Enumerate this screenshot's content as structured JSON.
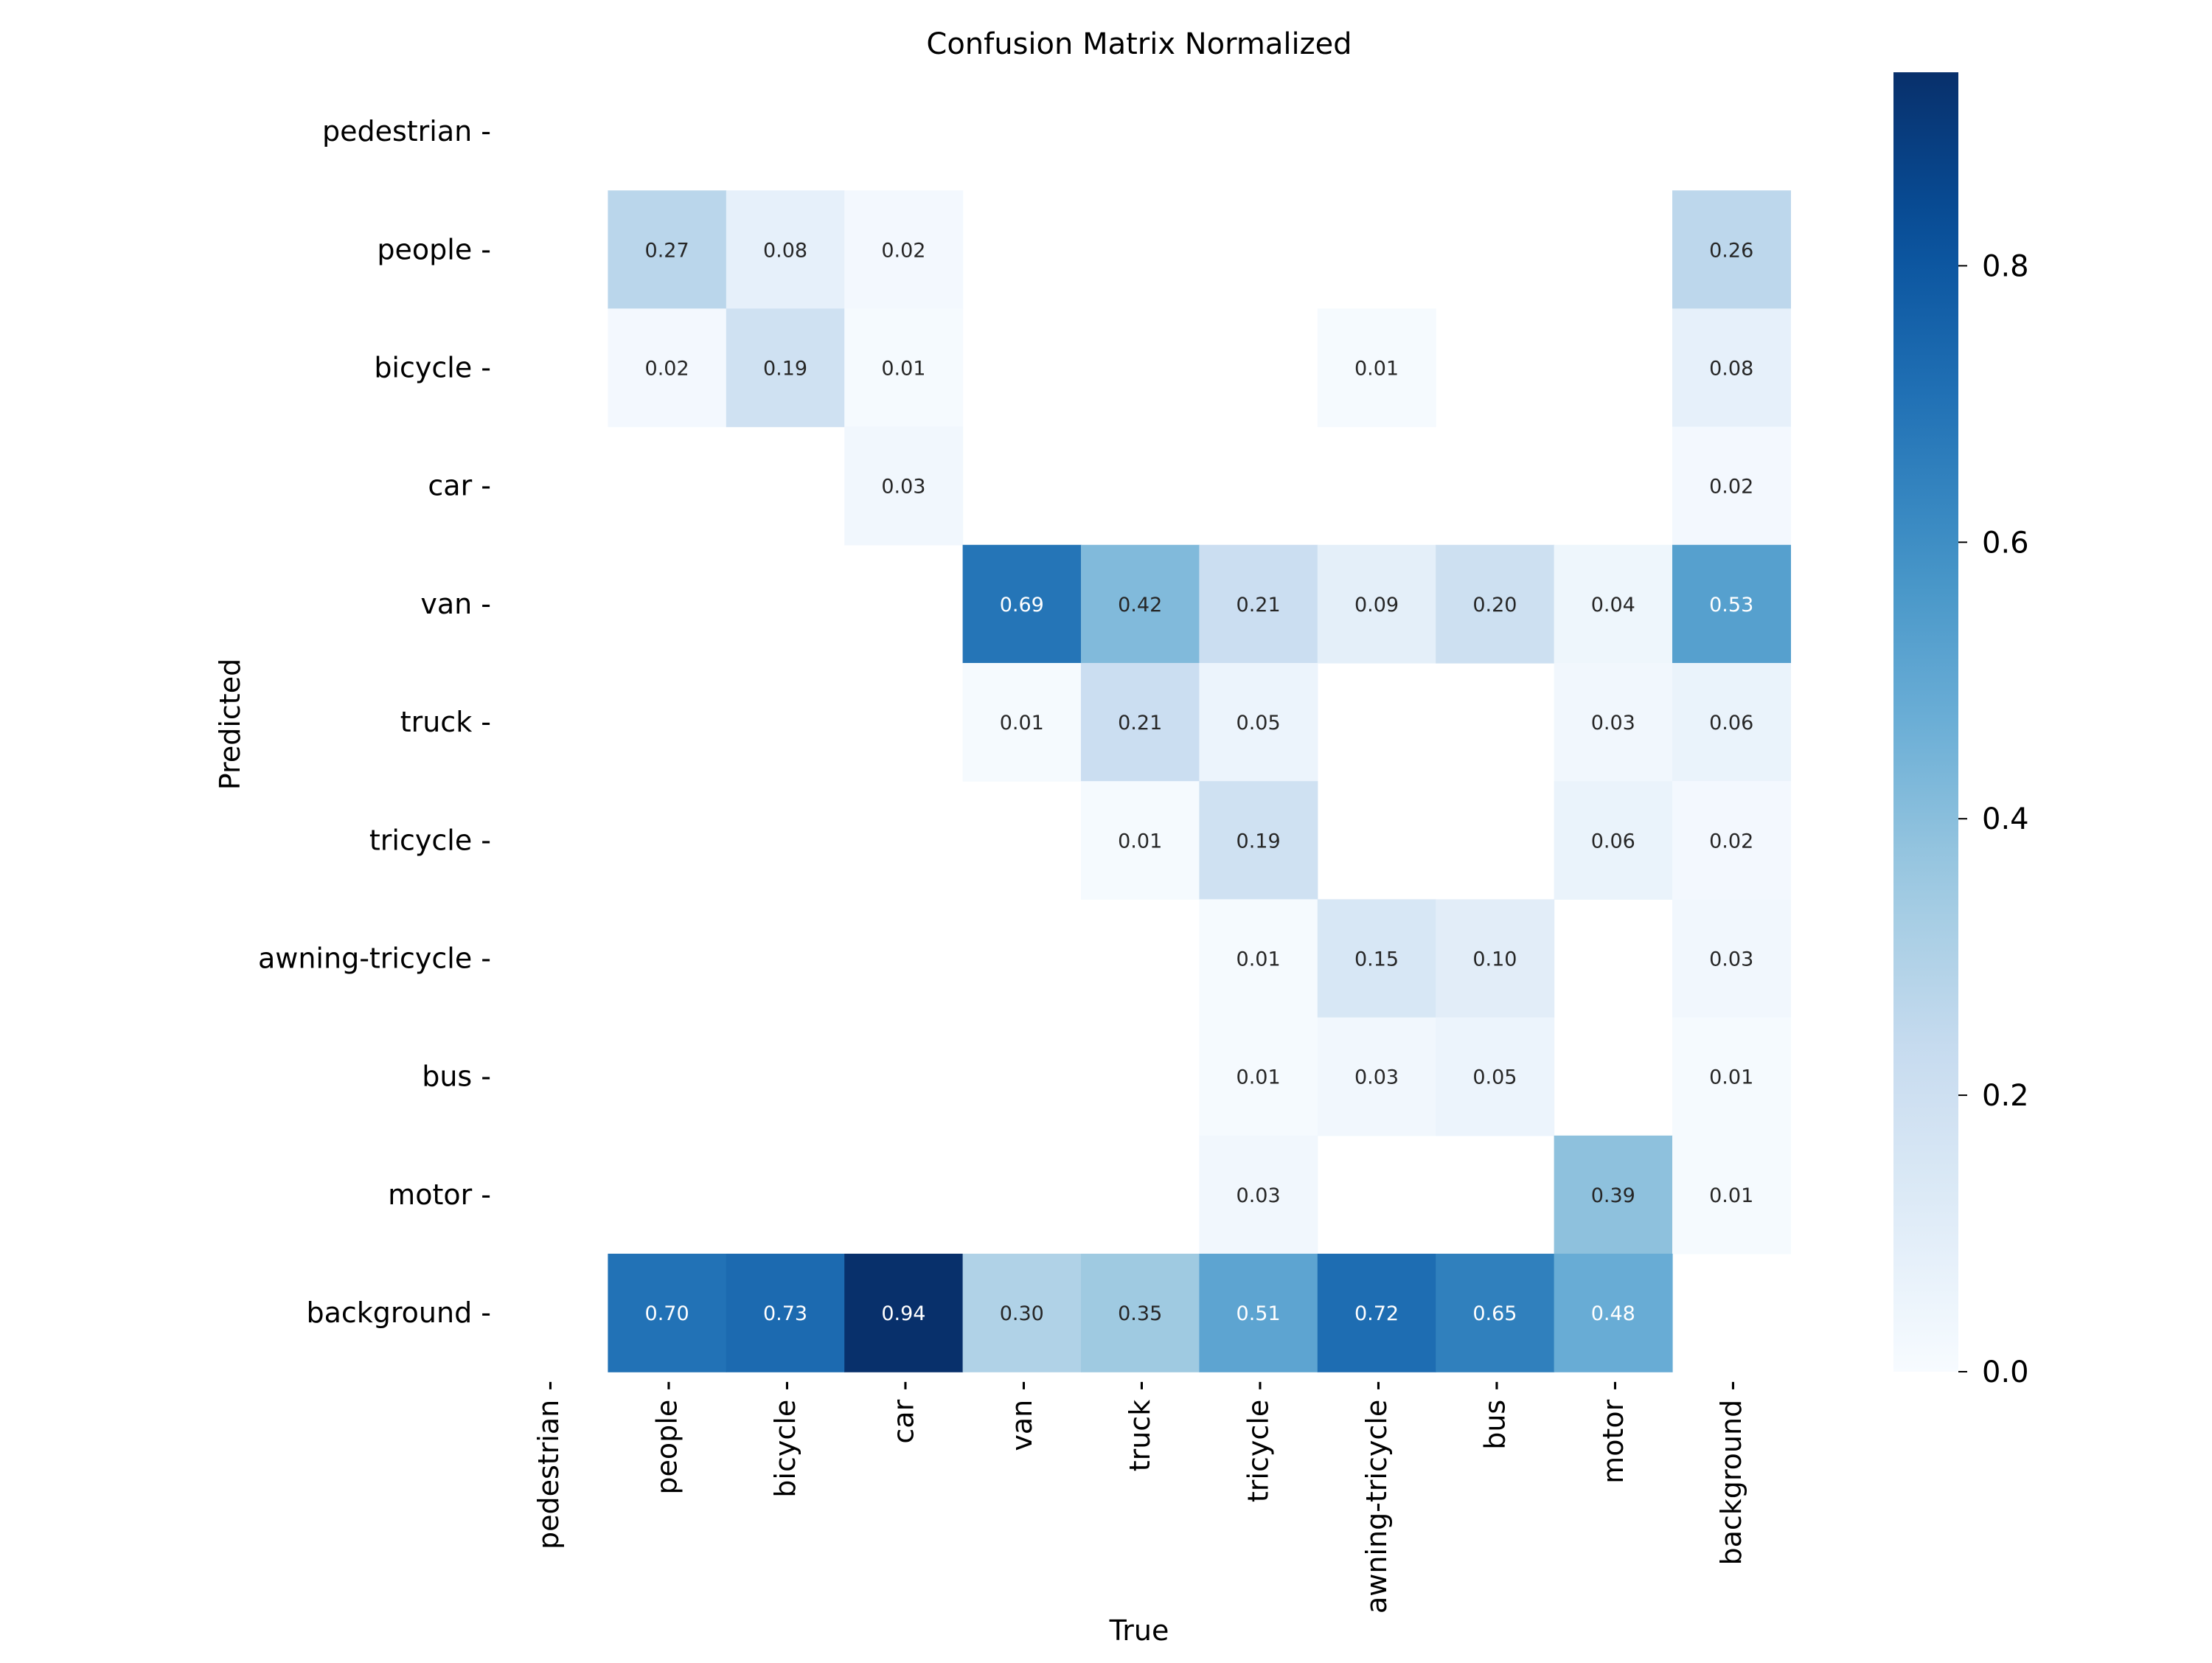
{
  "chart_data": {
    "type": "heatmap",
    "title": "Confusion Matrix Normalized",
    "xlabel": "True",
    "ylabel": "Predicted",
    "x_categories": [
      "pedestrian",
      "people",
      "bicycle",
      "car",
      "van",
      "truck",
      "tricycle",
      "awning-tricycle",
      "bus",
      "motor",
      "background"
    ],
    "y_categories": [
      "pedestrian",
      "people",
      "bicycle",
      "car",
      "van",
      "truck",
      "tricycle",
      "awning-tricycle",
      "bus",
      "motor",
      "background"
    ],
    "values": [
      [
        null,
        null,
        null,
        null,
        null,
        null,
        null,
        null,
        null,
        null,
        null
      ],
      [
        null,
        0.27,
        0.08,
        0.02,
        null,
        null,
        null,
        null,
        null,
        null,
        0.26
      ],
      [
        null,
        0.02,
        0.19,
        0.01,
        null,
        null,
        null,
        0.01,
        null,
        null,
        0.08
      ],
      [
        null,
        null,
        null,
        0.03,
        null,
        null,
        null,
        null,
        null,
        null,
        0.02
      ],
      [
        null,
        null,
        null,
        null,
        0.69,
        0.42,
        0.21,
        0.09,
        0.2,
        0.04,
        0.53
      ],
      [
        null,
        null,
        null,
        null,
        0.01,
        0.21,
        0.05,
        null,
        null,
        0.03,
        0.06
      ],
      [
        null,
        null,
        null,
        null,
        null,
        0.01,
        0.19,
        null,
        null,
        0.06,
        0.02
      ],
      [
        null,
        null,
        null,
        null,
        null,
        null,
        0.01,
        0.15,
        0.1,
        null,
        0.03
      ],
      [
        null,
        null,
        null,
        null,
        null,
        null,
        0.01,
        0.03,
        0.05,
        null,
        0.01
      ],
      [
        null,
        null,
        null,
        null,
        null,
        null,
        0.03,
        null,
        null,
        0.39,
        0.01
      ],
      [
        null,
        0.7,
        0.73,
        0.94,
        0.3,
        0.35,
        0.51,
        0.72,
        0.65,
        0.48,
        null
      ]
    ],
    "colormap": "Blues",
    "colorbar": {
      "range": [
        0,
        0.94
      ],
      "ticks": [
        0.0,
        0.2,
        0.4,
        0.6,
        0.8
      ],
      "tick_labels": [
        "0.0",
        "0.2",
        "0.4",
        "0.6",
        "0.8"
      ]
    },
    "colors": {
      "low": "#f7fbff",
      "high": "#08306b",
      "text_dark": "#262626",
      "text_light": "#ffffff"
    },
    "grid": false,
    "legend": "none"
  }
}
